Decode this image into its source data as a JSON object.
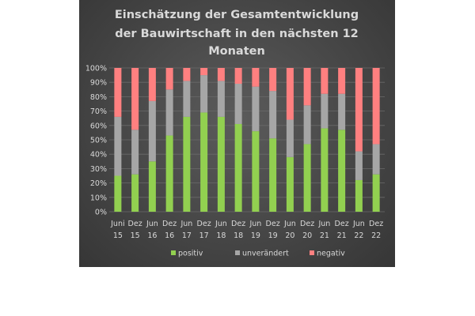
{
  "chart_data": {
    "type": "bar",
    "stacked": true,
    "percent": true,
    "title": [
      "Einschätzung der Gesamtentwicklung",
      "der Bauwirtschaft in den nächsten 12",
      "Monaten"
    ],
    "categories": [
      [
        "Juni",
        "15"
      ],
      [
        "Dez",
        "15"
      ],
      [
        "Jun",
        "16"
      ],
      [
        "Dez",
        "16"
      ],
      [
        "Jun",
        "17"
      ],
      [
        "Dez",
        "17"
      ],
      [
        "Jun",
        "18"
      ],
      [
        "Dez",
        "18"
      ],
      [
        "Jun",
        "19"
      ],
      [
        "Dez",
        "19"
      ],
      [
        "Jun",
        "20"
      ],
      [
        "Dez",
        "20"
      ],
      [
        "Jun",
        "21"
      ],
      [
        "Dez",
        "21"
      ],
      [
        "Jun",
        "22"
      ],
      [
        "Dez",
        "22"
      ]
    ],
    "series": [
      {
        "name": "positiv",
        "color": "#92d050",
        "values": [
          25,
          26,
          35,
          53,
          66,
          69,
          66,
          61,
          56,
          51,
          38,
          47,
          58,
          57,
          22,
          26
        ]
      },
      {
        "name": "unverändert",
        "color": "#a6a6a6",
        "values": [
          41,
          31,
          42,
          32,
          25,
          26,
          25,
          28,
          31,
          33,
          26,
          27,
          24,
          25,
          20,
          21
        ]
      },
      {
        "name": "negativ",
        "color": "#ff8080",
        "values": [
          34,
          43,
          23,
          15,
          9,
          5,
          9,
          11,
          13,
          16,
          36,
          26,
          18,
          18,
          58,
          53
        ]
      }
    ],
    "y_ticks": [
      "0%",
      "10%",
      "20%",
      "30%",
      "40%",
      "50%",
      "60%",
      "70%",
      "80%",
      "90%",
      "100%"
    ],
    "ylim": [
      0,
      100
    ],
    "legend_position": "bottom"
  }
}
